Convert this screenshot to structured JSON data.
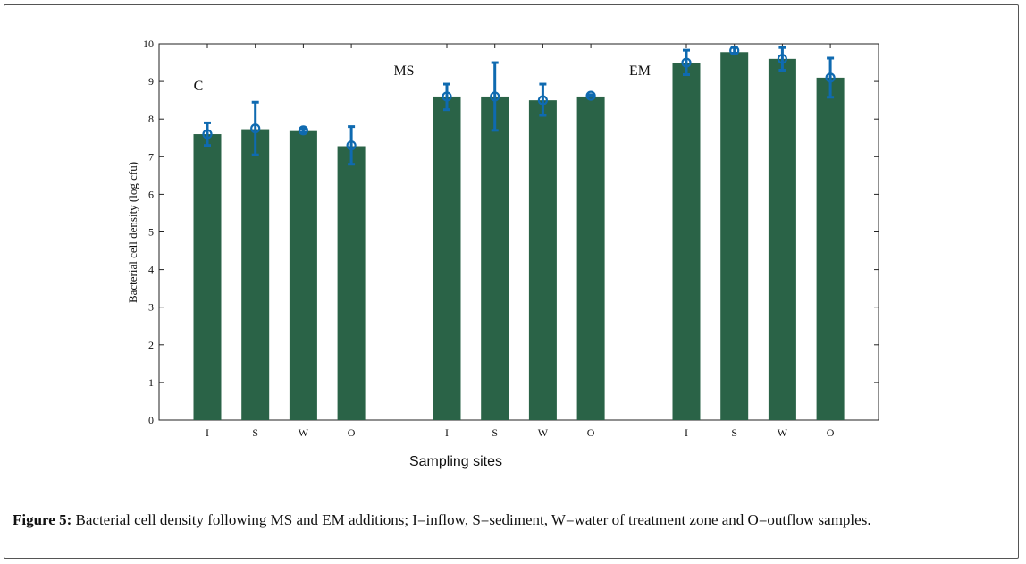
{
  "chart_data": {
    "type": "bar",
    "title": "",
    "xlabel": "Sampling sites",
    "ylabel": "Bacterial cell density (log cfu)",
    "ylim": [
      0,
      10
    ],
    "yticks": [
      0,
      1,
      2,
      3,
      4,
      5,
      6,
      7,
      8,
      9,
      10
    ],
    "groups": [
      {
        "label": "C",
        "categories": [
          "I",
          "S",
          "W",
          "O"
        ],
        "values": [
          7.6,
          7.73,
          7.68,
          7.28
        ],
        "markers": [
          7.6,
          7.75,
          7.7,
          7.3
        ],
        "error_low": [
          7.3,
          7.05,
          7.65,
          6.8
        ],
        "error_high": [
          7.9,
          8.45,
          7.75,
          7.8
        ]
      },
      {
        "label": "MS",
        "categories": [
          "I",
          "S",
          "W",
          "O"
        ],
        "values": [
          8.6,
          8.6,
          8.5,
          8.6
        ],
        "markers": [
          8.6,
          8.6,
          8.5,
          8.62
        ],
        "error_low": [
          8.25,
          7.7,
          8.1,
          8.6
        ],
        "error_high": [
          8.93,
          9.5,
          8.93,
          8.65
        ]
      },
      {
        "label": "EM",
        "categories": [
          "I",
          "S",
          "W",
          "O"
        ],
        "values": [
          9.5,
          9.78,
          9.6,
          9.1
        ],
        "markers": [
          9.5,
          9.82,
          9.6,
          9.1
        ],
        "error_low": [
          9.18,
          9.75,
          9.3,
          8.58
        ],
        "error_high": [
          9.83,
          9.9,
          9.9,
          9.62
        ]
      }
    ],
    "bar_color": "#2a6347",
    "error_color": "#0f6ab0",
    "grid": false
  },
  "caption": {
    "figure_label": "Figure 5:",
    "text": " Bacterial cell density following MS and EM additions; I=inflow, S=sediment, W=water of treatment zone and O=outflow samples."
  }
}
